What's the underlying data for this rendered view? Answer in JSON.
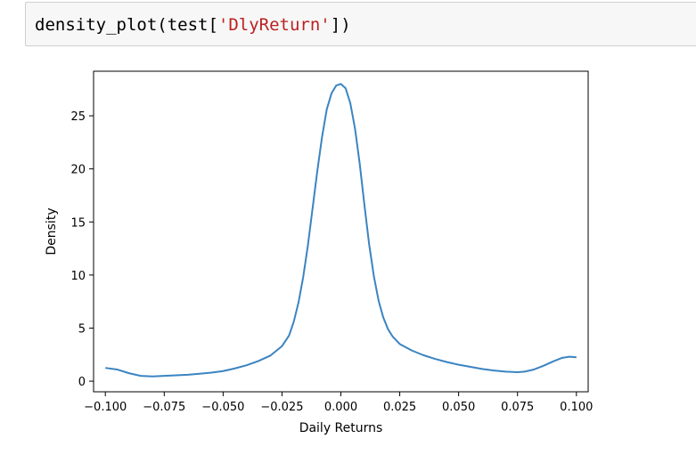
{
  "code_cell": {
    "call_prefix": "density_plot(test[",
    "string_arg": "'DlyReturn'",
    "call_suffix": "])"
  },
  "chart_data": {
    "type": "line",
    "title": "",
    "xlabel": "Daily Returns",
    "ylabel": "Density",
    "xlim": [
      -0.105,
      0.105
    ],
    "ylim": [
      -1.0,
      29.2
    ],
    "grid": false,
    "line_color": "#3a84c1",
    "xticks": [
      -0.1,
      -0.075,
      -0.05,
      -0.025,
      0.0,
      0.025,
      0.05,
      0.075,
      0.1
    ],
    "xtick_labels": [
      "−0.100",
      "−0.075",
      "−0.050",
      "−0.025",
      "0.000",
      "0.025",
      "0.050",
      "0.075",
      "0.100"
    ],
    "yticks": [
      0,
      5,
      10,
      15,
      20,
      25
    ],
    "ytick_labels": [
      "0",
      "5",
      "10",
      "15",
      "20",
      "25"
    ],
    "series": [
      {
        "x": [
          -0.1,
          -0.095,
          -0.09,
          -0.085,
          -0.08,
          -0.075,
          -0.07,
          -0.065,
          -0.06,
          -0.055,
          -0.05,
          -0.045,
          -0.04,
          -0.035,
          -0.03,
          -0.025,
          -0.022,
          -0.02,
          -0.018,
          -0.016,
          -0.014,
          -0.012,
          -0.01,
          -0.008,
          -0.006,
          -0.004,
          -0.002,
          0.0,
          0.002,
          0.004,
          0.006,
          0.008,
          0.01,
          0.012,
          0.014,
          0.016,
          0.018,
          0.02,
          0.022,
          0.025,
          0.03,
          0.035,
          0.04,
          0.045,
          0.05,
          0.055,
          0.06,
          0.065,
          0.07,
          0.075,
          0.078,
          0.082,
          0.086,
          0.09,
          0.094,
          0.097,
          0.1
        ],
        "y": [
          1.25,
          1.1,
          0.75,
          0.5,
          0.45,
          0.5,
          0.55,
          0.6,
          0.7,
          0.8,
          0.95,
          1.2,
          1.5,
          1.9,
          2.4,
          3.3,
          4.3,
          5.6,
          7.4,
          9.8,
          12.8,
          16.3,
          19.8,
          23.0,
          25.6,
          27.1,
          27.85,
          28.0,
          27.6,
          26.2,
          23.8,
          20.5,
          16.6,
          12.9,
          9.9,
          7.6,
          6.0,
          4.9,
          4.2,
          3.5,
          2.9,
          2.45,
          2.1,
          1.8,
          1.55,
          1.35,
          1.15,
          1.0,
          0.9,
          0.85,
          0.9,
          1.1,
          1.45,
          1.85,
          2.2,
          2.3,
          2.25
        ]
      }
    ]
  }
}
